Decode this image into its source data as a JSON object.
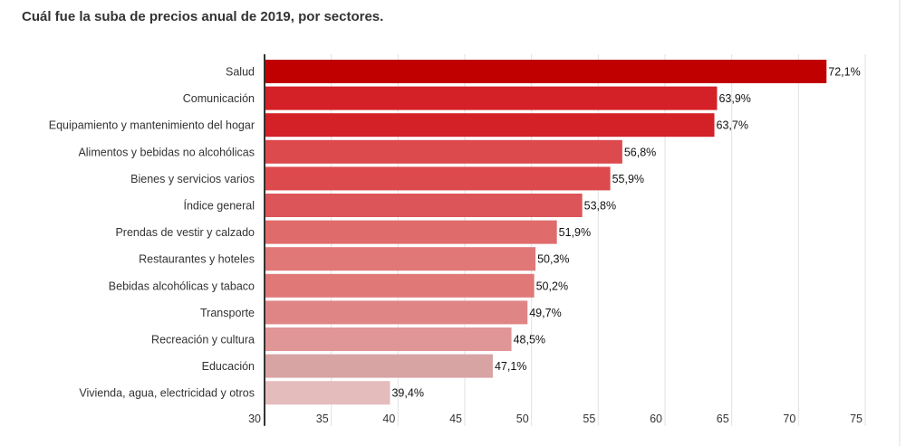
{
  "chart_data": {
    "type": "bar",
    "orientation": "horizontal",
    "title": "Cuál fue la suba de precios anual de 2019, por sectores.",
    "xlabel": "",
    "ylabel": "",
    "xlim": [
      30,
      75
    ],
    "ticks": [
      "30",
      "35",
      "40",
      "45",
      "50",
      "55",
      "60",
      "65",
      "70",
      "75"
    ],
    "tick_values": [
      30,
      35,
      40,
      45,
      50,
      55,
      60,
      65,
      70,
      75
    ],
    "grid": true,
    "categories": [
      "Salud",
      "Comunicación",
      "Equipamiento y mantenimiento del hogar",
      "Alimentos y bebidas no alcohólicas",
      "Bienes y servicios varios",
      "Índice general",
      "Prendas de vestir y calzado",
      "Restaurantes y hoteles",
      "Bebidas alcohólicas y tabaco",
      "Transporte",
      "Recreación y cultura",
      "Educación",
      "Vivienda, agua, electricidad y otros"
    ],
    "values": [
      72.1,
      63.9,
      63.7,
      56.8,
      55.9,
      53.8,
      51.9,
      50.3,
      50.2,
      49.7,
      48.5,
      47.1,
      39.4
    ],
    "labels": [
      "72,1%",
      "63,9%",
      "63,7%",
      "56,8%",
      "55,9%",
      "53,8%",
      "51,9%",
      "50,3%",
      "50,2%",
      "49,7%",
      "48,5%",
      "47,1%",
      "39,4%"
    ],
    "colors": [
      "#c00000",
      "#d42027",
      "#d42027",
      "#dc4a4d",
      "#dc4a4d",
      "#dc5558",
      "#e06b6b",
      "#e07878",
      "#e07878",
      "#e08585",
      "#e09696",
      "#d8a3a3",
      "#e5bcbc"
    ]
  }
}
